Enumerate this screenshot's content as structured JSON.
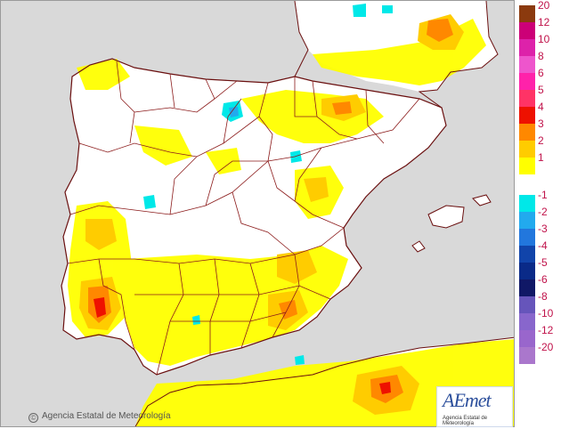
{
  "map": {
    "copyright_symbol": "©",
    "copyright": "Agencia Estatal de Meteorología",
    "logo": "AEmet",
    "logo_subtitle": "Agencia Estatal de Meteorología",
    "colors": {
      "sea": "#d9d9d9",
      "land": "#ffffff",
      "border": "#8b1a1a"
    }
  },
  "legend": {
    "items": [
      {
        "label": "20",
        "color": "#8b3a0e"
      },
      {
        "label": "12",
        "color": "#cc0077"
      },
      {
        "label": "10",
        "color": "#dd22aa"
      },
      {
        "label": "8",
        "color": "#ee55cc"
      },
      {
        "label": "6",
        "color": "#ff22aa"
      },
      {
        "label": "5",
        "color": "#ff3366"
      },
      {
        "label": "4",
        "color": "#ee1100"
      },
      {
        "label": "3",
        "color": "#ff8800"
      },
      {
        "label": "2",
        "color": "#ffcc00"
      },
      {
        "label": "1",
        "color": "#ffff00"
      },
      {
        "label": "",
        "color": "#ffffff"
      },
      {
        "label": "-1",
        "color": "#00e8e8"
      },
      {
        "label": "-2",
        "color": "#22aaee"
      },
      {
        "label": "-3",
        "color": "#2277dd"
      },
      {
        "label": "-4",
        "color": "#1144aa"
      },
      {
        "label": "-5",
        "color": "#0a2a88"
      },
      {
        "label": "-6",
        "color": "#101866"
      },
      {
        "label": "-8",
        "color": "#6655bb"
      },
      {
        "label": "-10",
        "color": "#8866cc"
      },
      {
        "label": "-12",
        "color": "#9966cc"
      },
      {
        "label": "-20",
        "color": "#aa77cc"
      }
    ]
  }
}
